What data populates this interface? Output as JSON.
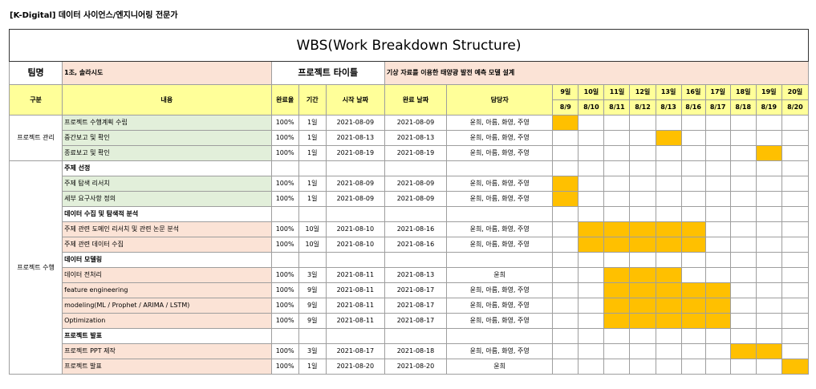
{
  "header_note": "[K-Digital] 데이터 사이언스/엔지니어링 전문가",
  "title": "WBS(Work Breakdown Structure)",
  "team_label": "팀명",
  "team_name": "1조, 솔라시도",
  "project_label": "프로젝트 타이틀",
  "project_title": "기상 자료를 이용한 태양광 발전 예측 모델 설계",
  "columns": {
    "category": "구분",
    "content": "내용",
    "completion": "완료율",
    "duration": "기간",
    "start": "시작 날짜",
    "end": "완료 날짜",
    "owner": "담당자"
  },
  "days": [
    "9일",
    "10일",
    "11일",
    "12일",
    "13일",
    "16일",
    "17일",
    "18일",
    "19일",
    "20일"
  ],
  "dates": [
    "8/9",
    "8/10",
    "8/11",
    "8/12",
    "8/13",
    "8/16",
    "8/17",
    "8/18",
    "8/19",
    "8/20"
  ],
  "groups": [
    "프로젝트 관리",
    "프로젝트 수행"
  ],
  "fill_color": "#ffc000",
  "rows": [
    {
      "type": "task",
      "group": 0,
      "color": "green",
      "content": "프로젝트 수행계획 수립",
      "completion": "100%",
      "duration": "1일",
      "start": "2021-08-09",
      "end": "2021-08-09",
      "owner": "윤희, 아름, 화영, 주영",
      "gantt": [
        1,
        0,
        0,
        0,
        0,
        0,
        0,
        0,
        0,
        0
      ]
    },
    {
      "type": "task",
      "group": 0,
      "color": "green",
      "content": "중간보고 및 확인",
      "completion": "100%",
      "duration": "1일",
      "start": "2021-08-13",
      "end": "2021-08-13",
      "owner": "윤희, 아름, 화영, 주영",
      "gantt": [
        0,
        0,
        0,
        0,
        1,
        0,
        0,
        0,
        0,
        0
      ]
    },
    {
      "type": "task",
      "group": 0,
      "color": "green",
      "content": "종료보고 및 확인",
      "completion": "100%",
      "duration": "1일",
      "start": "2021-08-19",
      "end": "2021-08-19",
      "owner": "윤희, 아름, 화영, 주영",
      "gantt": [
        0,
        0,
        0,
        0,
        0,
        0,
        0,
        0,
        1,
        0
      ]
    },
    {
      "type": "section",
      "group": 1,
      "content": "주제 선정",
      "gantt": [
        0,
        0,
        0,
        0,
        0,
        0,
        0,
        0,
        0,
        0
      ]
    },
    {
      "type": "task",
      "group": 1,
      "color": "green",
      "content": "주제 탐색 리서치",
      "completion": "100%",
      "duration": "1일",
      "start": "2021-08-09",
      "end": "2021-08-09",
      "owner": "윤희, 아름, 화영, 주영",
      "gantt": [
        1,
        0,
        0,
        0,
        0,
        0,
        0,
        0,
        0,
        0
      ]
    },
    {
      "type": "task",
      "group": 1,
      "color": "green",
      "content": "세부 요구사항 정의",
      "completion": "100%",
      "duration": "1일",
      "start": "2021-08-09",
      "end": "2021-08-09",
      "owner": "윤희, 아름, 화영, 주영",
      "gantt": [
        1,
        0,
        0,
        0,
        0,
        0,
        0,
        0,
        0,
        0
      ]
    },
    {
      "type": "section",
      "group": 1,
      "content": "데이터 수집 및 탐색적 분석",
      "gantt": [
        0,
        0,
        0,
        0,
        0,
        0,
        0,
        0,
        0,
        0
      ]
    },
    {
      "type": "task",
      "group": 1,
      "color": "peach",
      "content": "주제 관련 도메인 리서치 및 관련 논문 분석",
      "completion": "100%",
      "duration": "10일",
      "start": "2021-08-10",
      "end": "2021-08-16",
      "owner": "윤희, 아름, 화영, 주영",
      "gantt": [
        0,
        1,
        1,
        1,
        1,
        1,
        0,
        0,
        0,
        0
      ]
    },
    {
      "type": "task",
      "group": 1,
      "color": "peach",
      "content": "주제 관련 데이터 수집",
      "completion": "100%",
      "duration": "10일",
      "start": "2021-08-10",
      "end": "2021-08-16",
      "owner": "윤희, 아름, 화영, 주영",
      "gantt": [
        0,
        1,
        1,
        1,
        1,
        1,
        0,
        0,
        0,
        0
      ]
    },
    {
      "type": "section",
      "group": 1,
      "content": "데이터 모델링",
      "gantt": [
        0,
        0,
        0,
        0,
        0,
        0,
        0,
        0,
        0,
        0
      ]
    },
    {
      "type": "task",
      "group": 1,
      "color": "peach",
      "content": "데이터 전처리",
      "completion": "100%",
      "duration": "3일",
      "start": "2021-08-11",
      "end": "2021-08-13",
      "owner": "윤희",
      "gantt": [
        0,
        0,
        1,
        1,
        1,
        0,
        0,
        0,
        0,
        0
      ]
    },
    {
      "type": "task",
      "group": 1,
      "color": "peach",
      "content": "feature engineering",
      "completion": "100%",
      "duration": "9일",
      "start": "2021-08-11",
      "end": "2021-08-17",
      "owner": "윤희, 아름, 화영, 주영",
      "gantt": [
        0,
        0,
        1,
        1,
        1,
        1,
        1,
        0,
        0,
        0
      ]
    },
    {
      "type": "task",
      "group": 1,
      "color": "peach",
      "content": "modeling(ML / Prophet / ARIMA / LSTM)",
      "completion": "100%",
      "duration": "9일",
      "start": "2021-08-11",
      "end": "2021-08-17",
      "owner": "윤희, 아름, 화영, 주영",
      "gantt": [
        0,
        0,
        1,
        1,
        1,
        1,
        1,
        0,
        0,
        0
      ]
    },
    {
      "type": "task",
      "group": 1,
      "color": "peach",
      "content": "Optimization",
      "completion": "100%",
      "duration": "9일",
      "start": "2021-08-11",
      "end": "2021-08-17",
      "owner": "윤희, 아름, 화영, 주영",
      "gantt": [
        0,
        0,
        1,
        1,
        1,
        1,
        1,
        0,
        0,
        0
      ]
    },
    {
      "type": "section",
      "group": 1,
      "content": "프로젝트 발표",
      "gantt": [
        0,
        0,
        0,
        0,
        0,
        0,
        0,
        0,
        0,
        0
      ]
    },
    {
      "type": "task",
      "group": 1,
      "color": "peach",
      "content": "프로젝트 PPT 제작",
      "completion": "100%",
      "duration": "3일",
      "start": "2021-08-17",
      "end": "2021-08-18",
      "owner": "윤희, 아름, 화영, 주영",
      "gantt": [
        0,
        0,
        0,
        0,
        0,
        0,
        0,
        1,
        1,
        0
      ]
    },
    {
      "type": "task",
      "group": 1,
      "color": "peach",
      "content": "프로젝트 발표",
      "completion": "100%",
      "duration": "1일",
      "start": "2021-08-20",
      "end": "2021-08-20",
      "owner": "윤희",
      "gantt": [
        0,
        0,
        0,
        0,
        0,
        0,
        0,
        0,
        0,
        1
      ]
    }
  ]
}
